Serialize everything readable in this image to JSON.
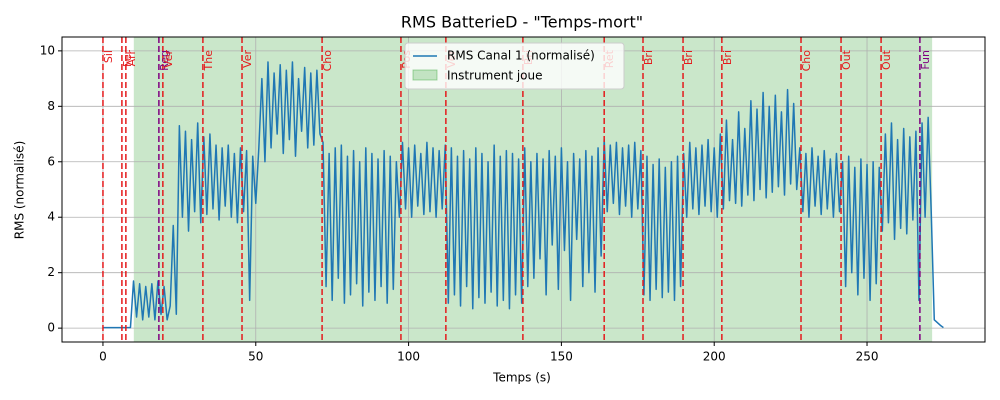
{
  "chart_data": {
    "type": "line",
    "title": "RMS BatterieD - \"Temps-mort\"",
    "xlabel": "Temps (s)",
    "ylabel": "RMS (normalisé)",
    "xlim": [
      -13.4,
      288.6
    ],
    "ylim": [
      -0.5,
      10.5
    ],
    "xticks": [
      0,
      50,
      100,
      150,
      200,
      250
    ],
    "yticks": [
      0,
      2,
      4,
      6,
      8,
      10
    ],
    "grid": true,
    "legend": "upper center",
    "span": {
      "xmin": 10.1,
      "xmax": 271.3,
      "color": "#2ca02c",
      "label": "Instrument joue"
    },
    "vlines": [
      {
        "x": 0,
        "label": "Sil",
        "color": "#e41a1c"
      },
      {
        "x": 6.2,
        "label": "Fer",
        "color": "#e41a1c"
      },
      {
        "x": 7.5,
        "label": "Arr",
        "color": "#e41a1c"
      },
      {
        "x": 18.3,
        "label": "Reg",
        "color": "#800080"
      },
      {
        "x": 19.6,
        "label": "Ver",
        "color": "#e41a1c"
      },
      {
        "x": 32.7,
        "label": "The",
        "color": "#e41a1c"
      },
      {
        "x": 45.5,
        "label": "Ver",
        "color": "#e41a1c"
      },
      {
        "x": 71.7,
        "label": "Cho",
        "color": "#e41a1c"
      },
      {
        "x": 97.5,
        "label": "Pos",
        "color": "#e41a1c"
      },
      {
        "x": 112.2,
        "label": "Ver",
        "color": "#e41a1c"
      },
      {
        "x": 137.4,
        "label": "Bri",
        "color": "#e41a1c"
      },
      {
        "x": 164,
        "label": "Ret",
        "color": "#e41a1c"
      },
      {
        "x": 176.7,
        "label": "Bri",
        "color": "#e41a1c"
      },
      {
        "x": 189.8,
        "label": "Bri",
        "color": "#e41a1c"
      },
      {
        "x": 202.5,
        "label": "Bri",
        "color": "#e41a1c"
      },
      {
        "x": 228.4,
        "label": "Cho",
        "color": "#e41a1c"
      },
      {
        "x": 241.5,
        "label": "Out",
        "color": "#e41a1c"
      },
      {
        "x": 254.6,
        "label": "Out",
        "color": "#e41a1c"
      },
      {
        "x": 267.3,
        "label": "Fun",
        "color": "#800080"
      }
    ],
    "x": [
      0,
      1,
      2,
      3,
      4,
      5,
      6,
      7,
      8,
      9,
      10,
      11,
      12,
      13,
      14,
      15,
      16,
      17,
      18,
      19,
      20,
      21,
      22,
      23,
      24,
      25,
      26,
      27,
      28,
      29,
      30,
      31,
      32,
      33,
      34,
      35,
      36,
      37,
      38,
      39,
      40,
      41,
      42,
      43,
      44,
      45,
      46,
      47,
      48,
      49,
      50,
      51,
      52,
      53,
      54,
      55,
      56,
      57,
      58,
      59,
      60,
      61,
      62,
      63,
      64,
      65,
      66,
      67,
      68,
      69,
      70,
      71,
      72,
      73,
      74,
      75,
      76,
      77,
      78,
      79,
      80,
      81,
      82,
      83,
      84,
      85,
      86,
      87,
      88,
      89,
      90,
      91,
      92,
      93,
      94,
      95,
      96,
      97,
      98,
      99,
      100,
      101,
      102,
      103,
      104,
      105,
      106,
      107,
      108,
      109,
      110,
      111,
      112,
      113,
      114,
      115,
      116,
      117,
      118,
      119,
      120,
      121,
      122,
      123,
      124,
      125,
      126,
      127,
      128,
      129,
      130,
      131,
      132,
      133,
      134,
      135,
      136,
      137,
      138,
      139,
      140,
      141,
      142,
      143,
      144,
      145,
      146,
      147,
      148,
      149,
      150,
      151,
      152,
      153,
      154,
      155,
      156,
      157,
      158,
      159,
      160,
      161,
      162,
      163,
      164,
      165,
      166,
      167,
      168,
      169,
      170,
      171,
      172,
      173,
      174,
      175,
      176,
      177,
      178,
      179,
      180,
      181,
      182,
      183,
      184,
      185,
      186,
      187,
      188,
      189,
      190,
      191,
      192,
      193,
      194,
      195,
      196,
      197,
      198,
      199,
      200,
      201,
      202,
      203,
      204,
      205,
      206,
      207,
      208,
      209,
      210,
      211,
      212,
      213,
      214,
      215,
      216,
      217,
      218,
      219,
      220,
      221,
      222,
      223,
      224,
      225,
      226,
      227,
      228,
      229,
      230,
      231,
      232,
      233,
      234,
      235,
      236,
      237,
      238,
      239,
      240,
      241,
      242,
      243,
      244,
      245,
      246,
      247,
      248,
      249,
      250,
      251,
      252,
      253,
      254,
      255,
      256,
      257,
      258,
      259,
      260,
      261,
      262,
      263,
      264,
      265,
      266,
      267,
      268,
      269,
      270,
      271,
      272,
      273,
      274,
      275
    ],
    "series": [
      {
        "name": "RMS Canal 1 (normalisé)",
        "color": "#1f77b4",
        "values": [
          0.02,
          0.02,
          0.02,
          0.02,
          0.02,
          0.02,
          0.02,
          0.02,
          0.02,
          0.02,
          1.7,
          0.4,
          1.6,
          0.3,
          1.5,
          0.4,
          1.6,
          0.3,
          1.7,
          0.5,
          1.5,
          0.3,
          0.8,
          3.7,
          0.5,
          7.3,
          4.0,
          7.1,
          3.5,
          6.8,
          4.2,
          7.4,
          3.8,
          6.9,
          4.1,
          7.0,
          4.3,
          6.6,
          3.9,
          6.5,
          4.4,
          6.6,
          4.0,
          6.3,
          3.8,
          6.5,
          4.2,
          6.4,
          1.0,
          6.2,
          4.5,
          6.5,
          9.0,
          6.0,
          9.6,
          6.5,
          9.2,
          7.0,
          9.5,
          6.3,
          9.3,
          6.8,
          9.6,
          6.2,
          9.0,
          7.1,
          9.4,
          6.5,
          9.2,
          6.6,
          9.3,
          7.0,
          6.7,
          1.5,
          6.3,
          1.0,
          6.5,
          1.8,
          6.6,
          0.9,
          6.2,
          1.2,
          6.4,
          1.6,
          6.0,
          0.8,
          6.5,
          1.3,
          6.3,
          1.0,
          6.1,
          1.5,
          6.4,
          0.9,
          6.2,
          1.4,
          6.0,
          4.0,
          6.7,
          4.3,
          6.5,
          4.0,
          6.6,
          4.4,
          6.3,
          4.1,
          6.7,
          4.2,
          6.5,
          4.0,
          6.4,
          4.3,
          6.6,
          0.9,
          6.5,
          1.2,
          6.2,
          0.8,
          6.4,
          1.5,
          6.1,
          0.7,
          6.5,
          1.1,
          6.3,
          0.9,
          6.0,
          1.3,
          6.6,
          0.8,
          6.2,
          1.0,
          6.4,
          0.7,
          6.3,
          1.2,
          6.1,
          0.9,
          6.5,
          1.5,
          6.0,
          1.8,
          6.3,
          2.5,
          6.1,
          1.2,
          6.4,
          3.0,
          6.2,
          1.4,
          6.5,
          2.8,
          6.0,
          1.0,
          6.3,
          3.2,
          6.1,
          1.5,
          6.4,
          2.0,
          6.2,
          1.3,
          6.5,
          2.6,
          6.8,
          4.2,
          6.6,
          4.5,
          6.7,
          4.1,
          6.5,
          4.4,
          6.6,
          4.0,
          6.7,
          4.3,
          6.4,
          1.2,
          6.2,
          1.0,
          5.9,
          1.4,
          6.1,
          1.1,
          5.8,
          1.3,
          6.0,
          1.0,
          6.2,
          1.5,
          6.3,
          4.0,
          6.7,
          4.3,
          6.5,
          4.1,
          6.6,
          4.4,
          6.8,
          4.2,
          6.5,
          4.0,
          7.0,
          4.3,
          7.5,
          4.6,
          6.8,
          4.5,
          7.8,
          4.4,
          7.2,
          4.8,
          8.2,
          4.6,
          7.9,
          5.0,
          8.5,
          4.7,
          8.0,
          4.9,
          8.4,
          5.1,
          7.8,
          4.8,
          8.6,
          5.2,
          8.1,
          5.0,
          6.5,
          4.2,
          6.3,
          4.0,
          6.5,
          4.4,
          6.2,
          4.1,
          6.4,
          4.3,
          6.1,
          4.0,
          6.3,
          4.2,
          6.0,
          1.5,
          6.2,
          2.0,
          5.8,
          1.2,
          6.1,
          1.8,
          5.9,
          1.0,
          6.0,
          1.6,
          5.8,
          3.5,
          7.0,
          3.8,
          7.4,
          3.2,
          6.8,
          3.6,
          7.2,
          3.4,
          6.9,
          3.9,
          7.1,
          1.0,
          7.4,
          4.0,
          7.6,
          4.2,
          0.3,
          0.2,
          0.1,
          0.02
        ]
      }
    ]
  }
}
